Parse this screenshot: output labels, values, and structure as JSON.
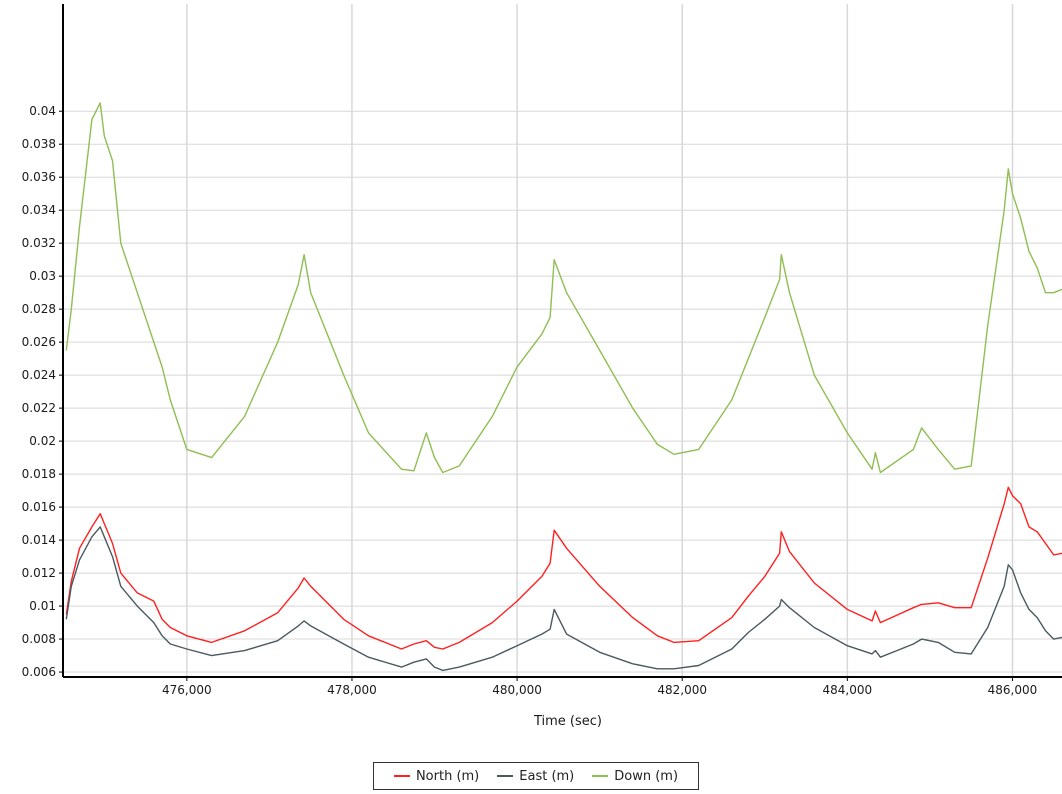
{
  "chart_data": {
    "type": "line",
    "xlabel": "Time (sec)",
    "ylabel": "",
    "xlim": [
      474500,
      486600
    ],
    "ylim": [
      0.0057,
      0.0465
    ],
    "x_ticks": [
      476000,
      478000,
      480000,
      482000,
      484000,
      486000
    ],
    "x_tick_labels": [
      "476,000",
      "478,000",
      "480,000",
      "482,000",
      "484,000",
      "486,000"
    ],
    "y_ticks": [
      0.006,
      0.008,
      0.01,
      0.012,
      0.014,
      0.016,
      0.018,
      0.02,
      0.022,
      0.024,
      0.026,
      0.028,
      0.03,
      0.032,
      0.034,
      0.036,
      0.038,
      0.04
    ],
    "y_tick_labels": [
      "0.006",
      "0.008",
      "0.01",
      "0.012",
      "0.014",
      "0.016",
      "0.018",
      "0.02",
      "0.022",
      "0.024",
      "0.026",
      "0.028",
      "0.03",
      "0.032",
      "0.034",
      "0.036",
      "0.038",
      "0.04"
    ],
    "grid": true,
    "legend_position": "bottom-center",
    "series": [
      {
        "name": "North (m)",
        "color": "#ff2020",
        "x": [
          474540,
          474600,
          474700,
          474850,
          474950,
          475000,
          475100,
          475200,
          475400,
          475600,
          475700,
          475800,
          476000,
          476300,
          476700,
          477100,
          477350,
          477420,
          477500,
          477900,
          478200,
          478600,
          478750,
          478900,
          479000,
          479100,
          479300,
          479700,
          480000,
          480300,
          480400,
          480450,
          480600,
          481000,
          481400,
          481700,
          481900,
          482200,
          482600,
          482800,
          483000,
          483180,
          483200,
          483300,
          483600,
          484000,
          484300,
          484340,
          484400,
          484800,
          484900,
          485100,
          485300,
          485500,
          485700,
          485900,
          485950,
          486000,
          486100,
          486200,
          486300,
          486400,
          486500,
          486600
        ],
        "y": [
          0.0095,
          0.0115,
          0.0135,
          0.0148,
          0.0156,
          0.015,
          0.0138,
          0.012,
          0.0108,
          0.0103,
          0.0092,
          0.0087,
          0.0082,
          0.0078,
          0.0085,
          0.0096,
          0.0111,
          0.0117,
          0.0112,
          0.0092,
          0.0082,
          0.0074,
          0.0077,
          0.0079,
          0.0075,
          0.0074,
          0.0078,
          0.009,
          0.0103,
          0.0118,
          0.0126,
          0.0146,
          0.0135,
          0.0112,
          0.0093,
          0.0082,
          0.0078,
          0.0079,
          0.0093,
          0.0106,
          0.0118,
          0.0132,
          0.0145,
          0.0133,
          0.0114,
          0.0098,
          0.0091,
          0.0097,
          0.009,
          0.0099,
          0.0101,
          0.0102,
          0.0099,
          0.0099,
          0.0129,
          0.0162,
          0.0172,
          0.0167,
          0.0162,
          0.0148,
          0.0145,
          0.0138,
          0.0131,
          0.0132
        ]
      },
      {
        "name": "East (m)",
        "color": "#4a5a60",
        "x": [
          474540,
          474600,
          474700,
          474850,
          474950,
          475000,
          475100,
          475200,
          475400,
          475600,
          475700,
          475800,
          476000,
          476300,
          476700,
          477100,
          477350,
          477420,
          477500,
          477900,
          478200,
          478600,
          478750,
          478900,
          479000,
          479100,
          479300,
          479700,
          480000,
          480300,
          480400,
          480450,
          480600,
          481000,
          481400,
          481700,
          481900,
          482200,
          482600,
          482800,
          483000,
          483180,
          483200,
          483300,
          483600,
          484000,
          484300,
          484340,
          484400,
          484800,
          484900,
          485100,
          485300,
          485500,
          485700,
          485900,
          485950,
          486000,
          486100,
          486200,
          486300,
          486400,
          486500,
          486600
        ],
        "y": [
          0.0092,
          0.0112,
          0.0128,
          0.0142,
          0.0148,
          0.0142,
          0.013,
          0.0112,
          0.01,
          0.009,
          0.0082,
          0.0077,
          0.0074,
          0.007,
          0.0073,
          0.0079,
          0.0088,
          0.0091,
          0.0088,
          0.0077,
          0.0069,
          0.0063,
          0.0066,
          0.0068,
          0.0063,
          0.0061,
          0.0063,
          0.0069,
          0.0076,
          0.0083,
          0.0086,
          0.0098,
          0.0083,
          0.0072,
          0.0065,
          0.0062,
          0.0062,
          0.0064,
          0.0074,
          0.0084,
          0.0092,
          0.01,
          0.0104,
          0.0099,
          0.0087,
          0.0076,
          0.0071,
          0.0073,
          0.0069,
          0.0077,
          0.008,
          0.0078,
          0.0072,
          0.0071,
          0.0087,
          0.0112,
          0.0125,
          0.0122,
          0.0108,
          0.0098,
          0.0093,
          0.0085,
          0.008,
          0.0081
        ]
      },
      {
        "name": "Down (m)",
        "color": "#8fbe52",
        "x": [
          474540,
          474600,
          474700,
          474850,
          474950,
          475000,
          475100,
          475200,
          475400,
          475600,
          475700,
          475800,
          476000,
          476300,
          476700,
          477100,
          477350,
          477420,
          477500,
          477900,
          478200,
          478600,
          478750,
          478900,
          479000,
          479100,
          479300,
          479700,
          480000,
          480300,
          480400,
          480450,
          480600,
          481000,
          481400,
          481700,
          481900,
          482200,
          482600,
          482800,
          483000,
          483180,
          483200,
          483300,
          483600,
          484000,
          484300,
          484340,
          484400,
          484800,
          484900,
          485100,
          485300,
          485500,
          485700,
          485900,
          485950,
          486000,
          486100,
          486200,
          486300,
          486400,
          486500,
          486600
        ],
        "y": [
          0.0255,
          0.028,
          0.033,
          0.0395,
          0.0405,
          0.0385,
          0.037,
          0.032,
          0.029,
          0.026,
          0.0245,
          0.0225,
          0.0195,
          0.019,
          0.0215,
          0.026,
          0.0295,
          0.0313,
          0.029,
          0.024,
          0.0205,
          0.0183,
          0.0182,
          0.0205,
          0.019,
          0.0181,
          0.0185,
          0.0215,
          0.0245,
          0.0265,
          0.0275,
          0.031,
          0.029,
          0.0255,
          0.022,
          0.0198,
          0.0192,
          0.0195,
          0.0225,
          0.025,
          0.0275,
          0.0298,
          0.0313,
          0.029,
          0.024,
          0.0205,
          0.0183,
          0.0193,
          0.0181,
          0.0195,
          0.0208,
          0.0195,
          0.0183,
          0.0185,
          0.027,
          0.034,
          0.0365,
          0.035,
          0.0335,
          0.0315,
          0.0305,
          0.029,
          0.029,
          0.0292
        ]
      }
    ]
  },
  "legend": {
    "north": "North (m)",
    "east": "East (m)",
    "down": "Down (m)"
  },
  "colors": {
    "north": "#ff2020",
    "east": "#4a5a60",
    "down": "#8fbe52",
    "grid": "#d8d8d8",
    "axis": "#000000"
  }
}
